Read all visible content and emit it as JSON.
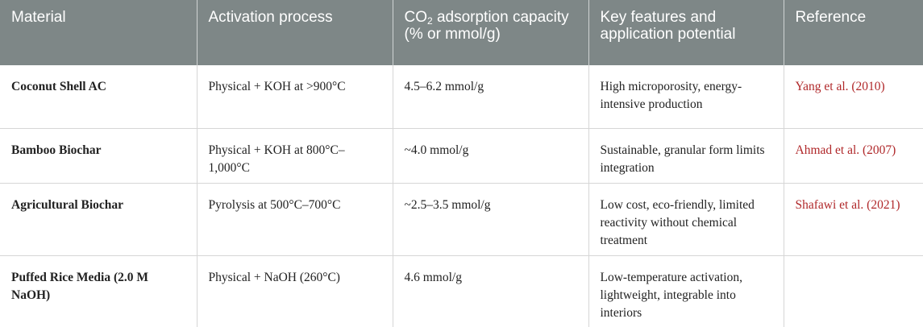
{
  "table": {
    "headers": {
      "material": "Material",
      "activation": "Activation process",
      "capacity_pre": "CO",
      "capacity_sub": "2",
      "capacity_post": " adsorption capacity (% or mmol/g)",
      "features": "Key features and application potential",
      "reference": "Reference"
    },
    "rows": [
      {
        "material": "Coconut Shell AC",
        "activation": "Physical + KOH at >900°C",
        "capacity": "4.5–6.2 mmol/g",
        "features": "High microporosity, energy-intensive production",
        "reference": "Yang et al. (2010)"
      },
      {
        "material": "Bamboo Biochar",
        "activation": "Physical + KOH at 800°C–1,000°C",
        "capacity": "~4.0 mmol/g",
        "features": "Sustainable, granular form limits integration",
        "reference": "Ahmad et al. (2007)"
      },
      {
        "material": "Agricultural Biochar",
        "activation": "Pyrolysis at 500°C–700°C",
        "capacity": "~2.5–3.5 mmol/g",
        "features": "Low cost, eco-friendly, limited reactivity without chemical treatment",
        "reference": "Shafawi et al. (2021)"
      },
      {
        "material": "Puffed Rice Media (2.0 M NaOH)",
        "activation": "Physical + NaOH (260°C)",
        "capacity": "4.6 mmol/g",
        "features": "Low-temperature activation, lightweight, integrable into interiors",
        "reference": ""
      }
    ],
    "colors": {
      "header_bg": "#7e8787",
      "header_text": "#ffffff",
      "reference_link": "#b0282a"
    }
  }
}
